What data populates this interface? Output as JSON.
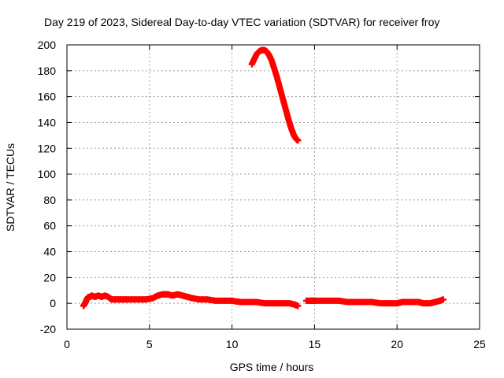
{
  "chart_data": {
    "type": "scatter",
    "title": "Day 219 of 2023, Sidereal Day-to-day VTEC variation (SDTVAR) for receiver froy",
    "xlabel": "GPS time / hours",
    "ylabel": "SDTVAR / TECUs",
    "xlim": [
      0,
      25
    ],
    "ylim": [
      -20,
      200
    ],
    "xticks": [
      0,
      5,
      10,
      15,
      20,
      25
    ],
    "yticks": [
      -20,
      0,
      20,
      40,
      60,
      80,
      100,
      120,
      140,
      160,
      180,
      200
    ],
    "grid": true,
    "legend": "none",
    "series": [
      {
        "color": "#ff0000",
        "marker": "plus",
        "x": [
          1.0,
          1.1,
          1.2,
          1.3,
          1.4,
          1.5,
          1.7,
          1.9,
          2.1,
          2.3,
          2.5,
          2.7,
          3.0,
          3.3,
          3.6,
          4.0,
          4.4,
          4.8,
          5.2,
          5.5,
          5.8,
          6.1,
          6.4,
          6.7,
          7.0,
          7.3,
          7.6,
          8.0,
          8.5,
          9.0,
          9.5,
          10.0,
          10.5,
          11.0,
          11.5,
          12.0,
          12.5,
          13.0,
          13.5,
          13.8,
          14.0,
          11.2,
          11.35,
          11.5,
          11.65,
          11.8,
          11.95,
          12.1,
          12.25,
          12.4,
          12.55,
          12.7,
          12.85,
          13.0,
          13.15,
          13.3,
          13.45,
          13.6,
          13.75,
          13.9,
          14.0,
          14.5,
          14.8,
          15.0,
          15.5,
          16.0,
          16.5,
          17.0,
          17.5,
          18.0,
          18.5,
          19.0,
          19.5,
          20.0,
          20.3,
          20.6,
          21.0,
          21.3,
          21.6,
          22.0,
          22.3,
          22.6,
          22.8
        ],
        "y": [
          -2,
          0,
          3,
          5,
          5,
          6,
          5,
          6,
          5,
          6,
          5,
          3,
          3,
          3,
          3,
          3,
          3,
          3,
          4,
          6,
          7,
          7,
          6,
          7,
          6,
          5,
          4,
          3,
          3,
          2,
          2,
          2,
          1,
          1,
          1,
          0,
          0,
          0,
          0,
          -1,
          -2,
          185,
          189,
          193,
          195,
          196,
          196,
          195,
          192,
          188,
          182,
          176,
          169,
          162,
          155,
          148,
          141,
          135,
          130,
          127,
          126,
          2,
          2,
          2,
          2,
          2,
          2,
          1,
          1,
          1,
          1,
          0,
          0,
          0,
          1,
          1,
          1,
          1,
          0,
          0,
          1,
          2,
          3
        ]
      }
    ]
  }
}
